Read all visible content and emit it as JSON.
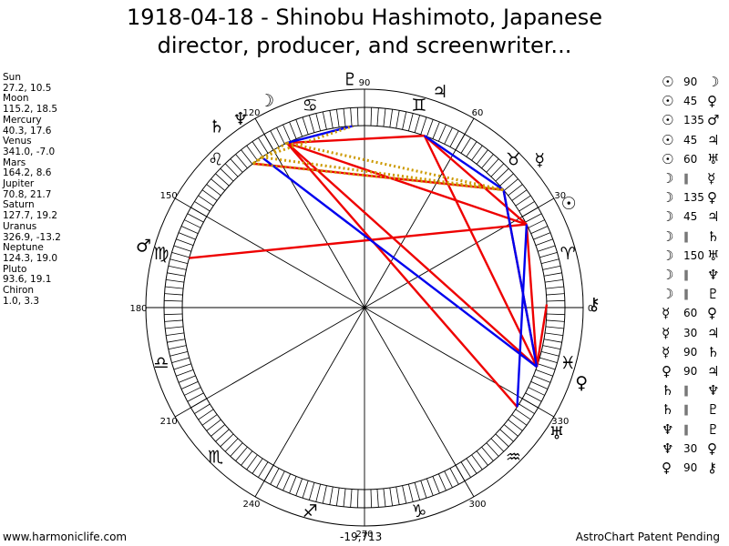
{
  "title": {
    "line1": "1918-04-18 - Shinobu Hashimoto, Japanese",
    "line2": "director, producer, and screenwriter..."
  },
  "planets": [
    {
      "name": "Sun",
      "coords": "27.2, 10.5"
    },
    {
      "name": "Moon",
      "coords": "115.2, 18.5"
    },
    {
      "name": "Mercury",
      "coords": "40.3, 17.6"
    },
    {
      "name": "Venus",
      "coords": "341.0, -7.0"
    },
    {
      "name": "Mars",
      "coords": "164.2, 8.6"
    },
    {
      "name": "Jupiter",
      "coords": "70.8, 21.7"
    },
    {
      "name": "Saturn",
      "coords": "127.7, 19.2"
    },
    {
      "name": "Uranus",
      "coords": "326.9, -13.2"
    },
    {
      "name": "Neptune",
      "coords": "124.3, 19.0"
    },
    {
      "name": "Pluto",
      "coords": "93.6, 19.1"
    },
    {
      "name": "Chiron",
      "coords": "1.0, 3.3"
    }
  ],
  "aspects": [
    {
      "p1": "☉",
      "angle": "90",
      "p2": "☽"
    },
    {
      "p1": "☉",
      "angle": "45",
      "p2": "♀"
    },
    {
      "p1": "☉",
      "angle": "135",
      "p2": "♂"
    },
    {
      "p1": "☉",
      "angle": "45",
      "p2": "♃"
    },
    {
      "p1": "☉",
      "angle": "60",
      "p2": "♅"
    },
    {
      "p1": "☽",
      "angle": "∥",
      "p2": "☿"
    },
    {
      "p1": "☽",
      "angle": "135",
      "p2": "♀"
    },
    {
      "p1": "☽",
      "angle": "45",
      "p2": "♃"
    },
    {
      "p1": "☽",
      "angle": "∥",
      "p2": "♄"
    },
    {
      "p1": "☽",
      "angle": "150",
      "p2": "♅"
    },
    {
      "p1": "☽",
      "angle": "∥",
      "p2": "♆"
    },
    {
      "p1": "☽",
      "angle": "∥",
      "p2": "♇"
    },
    {
      "p1": "☿",
      "angle": "60",
      "p2": "♀"
    },
    {
      "p1": "☿",
      "angle": "30",
      "p2": "♃"
    },
    {
      "p1": "☿",
      "angle": "90",
      "p2": "♄"
    },
    {
      "p1": "♀",
      "angle": "90",
      "p2": "♃"
    },
    {
      "p1": "♄",
      "angle": "∥",
      "p2": "♆"
    },
    {
      "p1": "♄",
      "angle": "∥",
      "p2": "♇"
    },
    {
      "p1": "♆",
      "angle": "∥",
      "p2": "♇"
    },
    {
      "p1": "♆",
      "angle": "30",
      "p2": "♀"
    },
    {
      "p1": "♀",
      "angle": "90",
      "p2": "⚷"
    }
  ],
  "wheel": {
    "degree_labels": [
      "0",
      "30",
      "60",
      "90",
      "120",
      "150",
      "180",
      "210",
      "240",
      "270",
      "300",
      "330"
    ],
    "zodiac_glyphs": [
      "♈",
      "♉",
      "♊",
      "♋",
      "♌",
      "♍",
      "♎",
      "♏",
      "♐",
      "♑",
      "♒",
      "♓"
    ],
    "planet_glyphs": {
      "sun": "☉",
      "moon": "☽",
      "mercury": "☿",
      "venus": "♀",
      "mars": "♂",
      "jupiter": "♃",
      "saturn": "♄",
      "uranus": "♅",
      "neptune": "♆",
      "pluto": "♇",
      "chiron": "⚷"
    }
  },
  "colors": {
    "hard_aspect": "#ee0000",
    "soft_aspect": "#0000ee",
    "parallel": "#cc9900"
  },
  "footer": {
    "left": "www.harmoniclife.com",
    "center": "-19,713",
    "right": "AstroChart Patent Pending"
  }
}
